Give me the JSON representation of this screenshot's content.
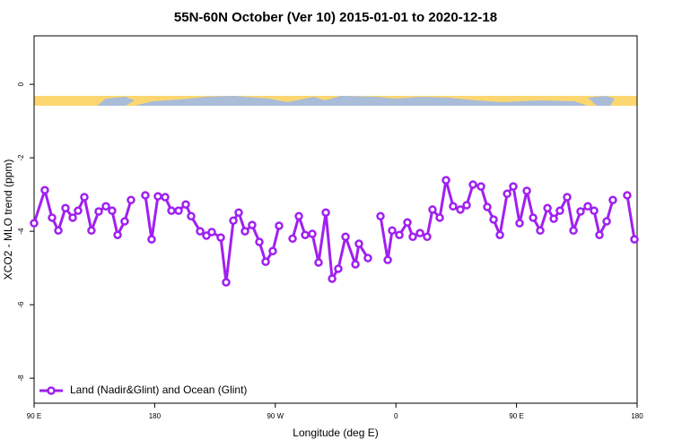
{
  "chart_data": {
    "type": "line",
    "title": "55N-60N October (Ver 10)   2015-01-01 to 2020-12-18",
    "xlabel": "Longitude (deg E)",
    "ylabel": "XCO2 - MLO trend (ppm)",
    "xlim": [
      90,
      540
    ],
    "ylim": [
      -8.68,
      1.32
    ],
    "xticks": [
      {
        "value": 90,
        "label": "90 E"
      },
      180,
      {
        "value": 270,
        "label": "90 W"
      },
      {
        "value": 360,
        "label": "0"
      },
      {
        "value": 450,
        "label": "90 E"
      },
      {
        "value": 540,
        "label": "180"
      }
    ],
    "yticks": [
      0,
      -2,
      -4,
      -6,
      -8
    ],
    "legend": "bottom-left",
    "series": [
      {
        "name": "Land (Nadir&Glint) and Ocean (Glint)",
        "color": "#a020f0",
        "x": [
          90,
          98.0,
          103.4,
          108.1,
          113.4,
          118.8,
          122.8,
          127.5,
          132.8,
          138.2,
          143.6,
          148.2,
          152.3,
          157.6,
          162.3,
          null,
          173.0,
          177.7,
          182.4,
          187.8,
          192.5,
          197.8,
          203.2,
          207.2,
          213.9,
          218.6,
          222.6,
          229.3,
          233.3,
          238.7,
          242.7,
          247.4,
          252.7,
          258.1,
          262.8,
          268.1,
          272.8,
          null,
          282.9,
          287.6,
          292.3,
          297.6,
          302.3,
          307.7,
          312.4,
          317.0,
          322.4,
          329.8,
          332.4,
          339.1,
          null,
          348.5,
          353.9,
          357.2,
          362.6,
          368.6,
          372.6,
          378.0,
          383.3,
          387.3,
          392.7,
          397.4,
          402.7,
          408.1,
          412.8,
          417.5,
          423.5,
          428.2,
          432.9,
          437.6,
          443.0,
          447.6,
          452.3,
          457.7,
          462.4,
          467.7,
          473.1,
          477.8,
          482.4,
          487.8,
          492.5,
          497.8,
          503.2,
          507.9,
          511.9,
          517.3,
          521.9,
          null,
          532.6,
          538.0
        ],
        "values": [
          -3.78,
          -2.88,
          -3.63,
          -3.98,
          -3.37,
          -3.63,
          -3.44,
          -3.07,
          -3.98,
          -3.46,
          -3.32,
          -3.44,
          -4.1,
          -3.73,
          -3.15,
          null,
          -3.02,
          -4.22,
          -3.05,
          -3.07,
          -3.44,
          -3.44,
          -3.27,
          -3.59,
          -4.0,
          -4.12,
          -4.02,
          -4.17,
          -5.39,
          -3.71,
          -3.49,
          -4.0,
          -3.83,
          -4.29,
          -4.83,
          -4.54,
          -3.85,
          null,
          -4.2,
          -3.59,
          -4.1,
          -4.07,
          -4.85,
          -3.49,
          -5.29,
          -5.02,
          -4.15,
          -4.9,
          -4.34,
          -4.73,
          null,
          -3.59,
          -4.78,
          -3.98,
          -4.1,
          -3.76,
          -4.15,
          -4.05,
          -4.15,
          -3.41,
          -3.63,
          -2.61,
          -3.32,
          -3.41,
          -3.29,
          -2.73,
          -2.78,
          -3.34,
          -3.68,
          -4.1,
          -2.98,
          -2.78,
          -3.78,
          -2.9,
          -3.63,
          -3.98,
          -3.37,
          -3.66,
          -3.44,
          -3.07,
          -3.98,
          -3.46,
          -3.32,
          -3.44,
          -4.1,
          -3.73,
          -3.15,
          null,
          -3.02,
          -4.22
        ]
      }
    ]
  }
}
